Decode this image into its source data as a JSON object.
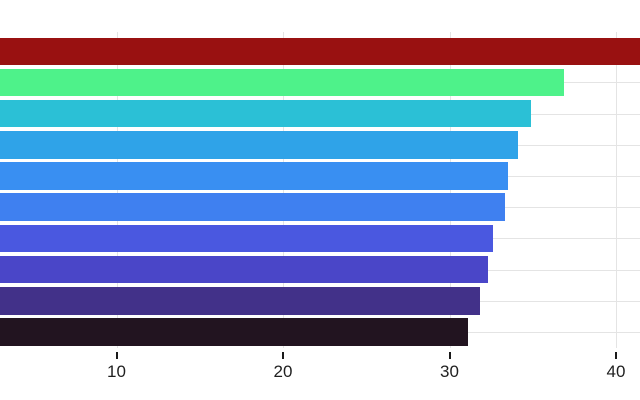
{
  "chart_data": {
    "type": "bar",
    "orientation": "horizontal",
    "title": "",
    "subtitle": "",
    "xlabel": "",
    "ylabel": "",
    "legend": "none",
    "grid": "both",
    "background_color": "#ffffff",
    "gridline_color": "#e4e4e4",
    "tick_mark_color": "#1a1a1a",
    "tick_label_color": "#1f1f1f",
    "x_ticks": [
      10,
      20,
      30,
      40
    ],
    "x_tick_labels": [
      "10",
      "20",
      "30",
      "40"
    ],
    "x_visible_range": [
      3.0,
      41.4
    ],
    "category_labels_visible": false,
    "bars": [
      {
        "row": 1,
        "value": 41.4,
        "clipped_at_right": true,
        "color": "#991111"
      },
      {
        "row": 2,
        "value": 36.9,
        "clipped_at_right": false,
        "color": "#4ef28a"
      },
      {
        "row": 3,
        "value": 34.9,
        "clipped_at_right": false,
        "color": "#2bc0d6"
      },
      {
        "row": 4,
        "value": 34.1,
        "clipped_at_right": false,
        "color": "#2fa3e8"
      },
      {
        "row": 5,
        "value": 33.5,
        "clipped_at_right": false,
        "color": "#398ff2"
      },
      {
        "row": 6,
        "value": 33.3,
        "clipped_at_right": false,
        "color": "#3f80f0"
      },
      {
        "row": 7,
        "value": 32.6,
        "clipped_at_right": false,
        "color": "#4a58e0"
      },
      {
        "row": 8,
        "value": 32.3,
        "clipped_at_right": false,
        "color": "#4a46c8"
      },
      {
        "row": 9,
        "value": 31.8,
        "clipped_at_right": false,
        "color": "#423189"
      },
      {
        "row": 10,
        "value": 31.1,
        "clipped_at_right": false,
        "color": "#221420"
      }
    ]
  }
}
